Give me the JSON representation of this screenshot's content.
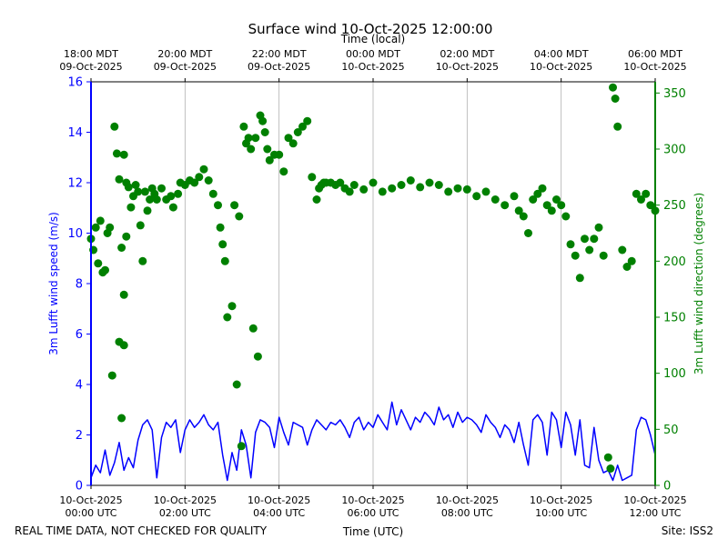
{
  "chart_data": {
    "type": "line+scatter",
    "title": "Surface wind 10-Oct-2025 12:00:00",
    "top_axis_label": "Time (local)",
    "xlabel": "Time (UTC)",
    "ylabel_left": "3m Lufft wind speed (m/s)",
    "ylabel_right": "3m Lufft wind direction (degrees)",
    "footer_left": "REAL TIME DATA, NOT CHECKED FOR QUALITY",
    "footer_right": "Site: ISS2",
    "xlim_hours": [
      0,
      12
    ],
    "ylim_left": [
      0,
      16
    ],
    "ylim_right": [
      0,
      360
    ],
    "grid": "vertical-major",
    "colors": {
      "speed": "#0000ff",
      "direction": "#008000",
      "axis": "#000000",
      "grid": "#b0b0b0"
    },
    "bottom_ticks": [
      {
        "x": 0,
        "line1": "10-Oct-2025",
        "line2": "00:00 UTC"
      },
      {
        "x": 2,
        "line1": "10-Oct-2025",
        "line2": "02:00 UTC"
      },
      {
        "x": 4,
        "line1": "10-Oct-2025",
        "line2": "04:00 UTC"
      },
      {
        "x": 6,
        "line1": "10-Oct-2025",
        "line2": "06:00 UTC"
      },
      {
        "x": 8,
        "line1": "10-Oct-2025",
        "line2": "08:00 UTC"
      },
      {
        "x": 10,
        "line1": "10-Oct-2025",
        "line2": "10:00 UTC"
      },
      {
        "x": 12,
        "line1": "10-Oct-2025",
        "line2": "12:00 UTC"
      }
    ],
    "top_ticks": [
      {
        "x": 0,
        "line1": "18:00 MDT",
        "line2": "09-Oct-2025"
      },
      {
        "x": 2,
        "line1": "20:00 MDT",
        "line2": "09-Oct-2025"
      },
      {
        "x": 4,
        "line1": "22:00 MDT",
        "line2": "09-Oct-2025"
      },
      {
        "x": 6,
        "line1": "00:00 MDT",
        "line2": "10-Oct-2025"
      },
      {
        "x": 8,
        "line1": "02:00 MDT",
        "line2": "10-Oct-2025"
      },
      {
        "x": 10,
        "line1": "04:00 MDT",
        "line2": "10-Oct-2025"
      },
      {
        "x": 12,
        "line1": "06:00 MDT",
        "line2": "10-Oct-2025"
      }
    ],
    "left_ticks": [
      0,
      2,
      4,
      6,
      8,
      10,
      12,
      14,
      16
    ],
    "right_ticks": [
      0,
      50,
      100,
      150,
      200,
      250,
      300,
      350
    ],
    "speed_series": {
      "name": "3m Lufft wind speed (m/s)",
      "x": [
        0.0,
        0.1,
        0.2,
        0.3,
        0.4,
        0.5,
        0.6,
        0.7,
        0.8,
        0.9,
        1.0,
        1.1,
        1.2,
        1.3,
        1.4,
        1.5,
        1.6,
        1.7,
        1.8,
        1.9,
        2.0,
        2.1,
        2.2,
        2.3,
        2.4,
        2.5,
        2.6,
        2.7,
        2.8,
        2.9,
        3.0,
        3.1,
        3.2,
        3.3,
        3.4,
        3.5,
        3.6,
        3.7,
        3.8,
        3.9,
        4.0,
        4.1,
        4.2,
        4.3,
        4.4,
        4.5,
        4.6,
        4.7,
        4.8,
        4.9,
        5.0,
        5.1,
        5.2,
        5.3,
        5.4,
        5.5,
        5.6,
        5.7,
        5.8,
        5.9,
        6.0,
        6.1,
        6.2,
        6.3,
        6.4,
        6.5,
        6.6,
        6.7,
        6.8,
        6.9,
        7.0,
        7.1,
        7.2,
        7.3,
        7.4,
        7.5,
        7.6,
        7.7,
        7.8,
        7.9,
        8.0,
        8.1,
        8.2,
        8.3,
        8.4,
        8.5,
        8.6,
        8.7,
        8.8,
        8.9,
        9.0,
        9.1,
        9.2,
        9.3,
        9.4,
        9.5,
        9.6,
        9.7,
        9.8,
        9.9,
        10.0,
        10.1,
        10.2,
        10.3,
        10.4,
        10.5,
        10.6,
        10.7,
        10.8,
        10.9,
        11.0,
        11.1,
        11.2,
        11.3,
        11.4,
        11.5,
        11.6,
        11.7,
        11.8,
        11.9,
        12.0
      ],
      "values": [
        0.3,
        0.8,
        0.5,
        1.4,
        0.4,
        0.9,
        1.7,
        0.6,
        1.1,
        0.7,
        1.8,
        2.4,
        2.6,
        2.2,
        0.3,
        1.9,
        2.5,
        2.3,
        2.6,
        1.3,
        2.2,
        2.6,
        2.3,
        2.5,
        2.8,
        2.4,
        2.2,
        2.5,
        1.2,
        0.2,
        1.3,
        0.6,
        2.2,
        1.6,
        0.3,
        2.1,
        2.6,
        2.5,
        2.3,
        1.5,
        2.7,
        2.1,
        1.6,
        2.5,
        2.4,
        2.3,
        1.6,
        2.2,
        2.6,
        2.4,
        2.2,
        2.5,
        2.4,
        2.6,
        2.3,
        1.9,
        2.5,
        2.7,
        2.2,
        2.5,
        2.3,
        2.8,
        2.5,
        2.2,
        3.3,
        2.4,
        3.0,
        2.6,
        2.2,
        2.7,
        2.5,
        2.9,
        2.7,
        2.4,
        3.1,
        2.6,
        2.8,
        2.3,
        2.9,
        2.5,
        2.7,
        2.6,
        2.4,
        2.1,
        2.8,
        2.5,
        2.3,
        1.9,
        2.4,
        2.2,
        1.7,
        2.5,
        1.6,
        0.8,
        2.6,
        2.8,
        2.5,
        1.2,
        2.9,
        2.6,
        1.5,
        2.9,
        2.4,
        1.2,
        2.6,
        0.8,
        0.7,
        2.3,
        1.0,
        0.5,
        0.6,
        0.2,
        0.8,
        0.2,
        0.3,
        0.4,
        2.2,
        2.7,
        2.6,
        2.0,
        1.2
      ]
    },
    "direction_series": {
      "name": "3m Lufft wind direction (degrees)",
      "x": [
        0.0,
        0.05,
        0.1,
        0.15,
        0.2,
        0.25,
        0.3,
        0.35,
        0.4,
        0.45,
        0.5,
        0.55,
        0.6,
        0.6,
        0.65,
        0.65,
        0.7,
        0.7,
        0.7,
        0.75,
        0.75,
        0.8,
        0.85,
        0.9,
        0.95,
        1.0,
        1.05,
        1.1,
        1.15,
        1.2,
        1.25,
        1.3,
        1.35,
        1.4,
        1.5,
        1.6,
        1.7,
        1.75,
        1.85,
        1.9,
        2.0,
        2.1,
        2.2,
        2.3,
        2.4,
        2.5,
        2.6,
        2.7,
        2.75,
        2.8,
        2.85,
        2.9,
        3.0,
        3.05,
        3.1,
        3.15,
        3.2,
        3.25,
        3.3,
        3.35,
        3.4,
        3.45,
        3.5,
        3.55,
        3.6,
        3.65,
        3.7,
        3.75,
        3.8,
        3.9,
        4.0,
        4.1,
        4.2,
        4.3,
        4.4,
        4.5,
        4.6,
        4.7,
        4.8,
        4.85,
        4.9,
        4.95,
        5.0,
        5.1,
        5.2,
        5.3,
        5.4,
        5.5,
        5.6,
        5.8,
        6.0,
        6.2,
        6.4,
        6.6,
        6.8,
        7.0,
        7.2,
        7.4,
        7.6,
        7.8,
        8.0,
        8.2,
        8.4,
        8.6,
        8.8,
        9.0,
        9.1,
        9.2,
        9.3,
        9.4,
        9.5,
        9.6,
        9.7,
        9.8,
        9.9,
        10.0,
        10.1,
        10.2,
        10.3,
        10.4,
        10.5,
        10.6,
        10.7,
        10.8,
        10.9,
        11.0,
        11.05,
        11.1,
        11.15,
        11.2,
        11.3,
        11.4,
        11.5,
        11.6,
        11.7,
        11.8,
        11.9,
        12.0
      ],
      "values": [
        220,
        210,
        230,
        198,
        236,
        190,
        192,
        225,
        230,
        98,
        320,
        296,
        128,
        273,
        60,
        212,
        125,
        295,
        170,
        270,
        222,
        266,
        248,
        258,
        268,
        262,
        232,
        200,
        262,
        245,
        255,
        265,
        260,
        255,
        265,
        255,
        258,
        248,
        260,
        270,
        268,
        272,
        270,
        275,
        282,
        272,
        260,
        250,
        230,
        215,
        200,
        150,
        160,
        250,
        90,
        240,
        35,
        320,
        305,
        310,
        300,
        140,
        310,
        115,
        330,
        325,
        315,
        300,
        290,
        295,
        295,
        280,
        310,
        305,
        315,
        320,
        325,
        275,
        255,
        265,
        268,
        270,
        270,
        270,
        268,
        270,
        265,
        262,
        268,
        264,
        270,
        262,
        265,
        268,
        272,
        266,
        270,
        268,
        262,
        265,
        264,
        258,
        262,
        255,
        250,
        258,
        245,
        240,
        225,
        255,
        260,
        265,
        250,
        245,
        255,
        250,
        240,
        215,
        205,
        185,
        220,
        210,
        220,
        230,
        205,
        25,
        15,
        355,
        345,
        320,
        210,
        195,
        200,
        260,
        255,
        260,
        250,
        245
      ]
    }
  }
}
